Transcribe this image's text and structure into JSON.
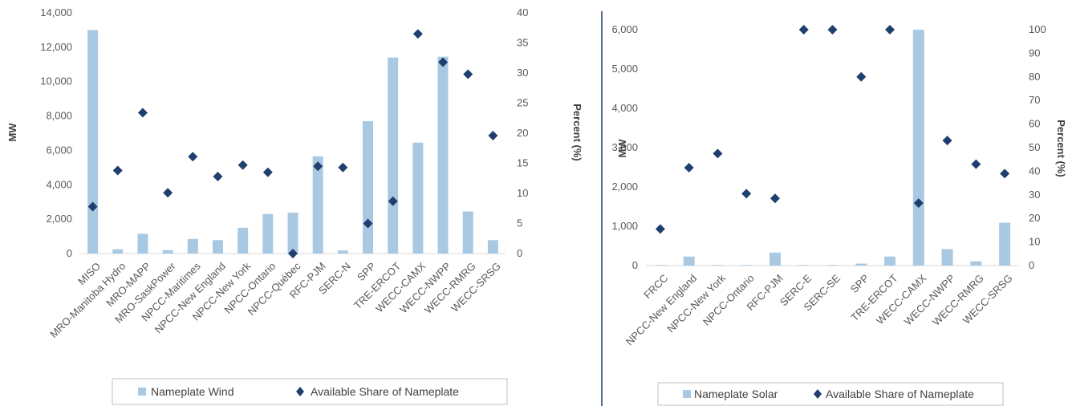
{
  "colors": {
    "bar": "#a9c9e3",
    "marker": "#1f3f6e",
    "axis": "#d9d9d9",
    "text": "#595959",
    "divider": "#1f3f6e"
  },
  "chart_data": [
    {
      "type": "bar",
      "categories": [
        "MISO",
        "MRO-Manitoba Hydro",
        "MRO-MAPP",
        "MRO-SaskPower",
        "NPCC-Maritimes",
        "NPCC-New England",
        "NPCC-New York",
        "NPCC-Ontario",
        "NPCC-Québec",
        "RFC-PJM",
        "SERC-N",
        "SPP",
        "TRE-ERCOT",
        "WECC-CAMX",
        "WECC-NWPP",
        "WECC-RMRG",
        "WECC-SRSG"
      ],
      "series": [
        {
          "name": "Nameplate Wind",
          "type": "bar",
          "axis": "left",
          "values": [
            13000,
            250,
            1150,
            200,
            850,
            780,
            1500,
            2300,
            2380,
            5650,
            180,
            7700,
            11400,
            6450,
            11450,
            2450,
            780
          ]
        },
        {
          "name": "Available Share of Nameplate",
          "type": "scatter",
          "axis": "right",
          "values": [
            7.8,
            13.8,
            23.4,
            10.1,
            16.1,
            12.8,
            14.7,
            13.5,
            0,
            14.5,
            14.3,
            5,
            8.7,
            36.5,
            31.8,
            29.8,
            19.6
          ]
        }
      ],
      "ylabel": "MW",
      "y2label": "Percent (%)",
      "ylim": [
        0,
        14000
      ],
      "y2lim": [
        0,
        40
      ],
      "yticks": [
        "0",
        "2,000",
        "4,000",
        "6,000",
        "8,000",
        "10,000",
        "12,000",
        "14,000"
      ],
      "y2ticks": [
        "0",
        "5",
        "10",
        "15",
        "20",
        "25",
        "30",
        "35",
        "40"
      ],
      "legend": [
        "Nameplate Wind",
        "Available Share of Nameplate"
      ],
      "legend_position": "bottom",
      "grid": false
    },
    {
      "type": "bar",
      "categories": [
        "FRCC",
        "NPCC-New England",
        "NPCC-New York",
        "NPCC-Ontario",
        "RFC-PJM",
        "SERC-E",
        "SERC-SE",
        "SPP",
        "TRE-ERCOT",
        "WECC-CAMX",
        "WECC-NWPP",
        "WECC-RMRG",
        "WECC-SRSG"
      ],
      "series": [
        {
          "name": "Nameplate Solar",
          "type": "bar",
          "axis": "left",
          "values": [
            15,
            230,
            15,
            15,
            330,
            15,
            15,
            50,
            230,
            6000,
            420,
            110,
            1090
          ]
        },
        {
          "name": "Available Share of Nameplate",
          "type": "scatter",
          "axis": "right",
          "values": [
            15.5,
            41.5,
            47.5,
            30.5,
            28.5,
            100,
            100,
            80,
            100,
            26.5,
            53,
            43,
            39
          ]
        }
      ],
      "ylabel": "MW",
      "y2label": "Percent (%)",
      "ylim": [
        0,
        6000
      ],
      "y2lim": [
        0,
        100
      ],
      "yticks": [
        "0",
        "1,000",
        "2,000",
        "3,000",
        "4,000",
        "5,000",
        "6,000"
      ],
      "y2ticks": [
        "0",
        "10",
        "20",
        "30",
        "40",
        "50",
        "60",
        "70",
        "80",
        "90",
        "100"
      ],
      "legend": [
        "Nameplate Solar",
        "Available Share of Nameplate"
      ],
      "legend_position": "bottom",
      "grid": false
    }
  ]
}
